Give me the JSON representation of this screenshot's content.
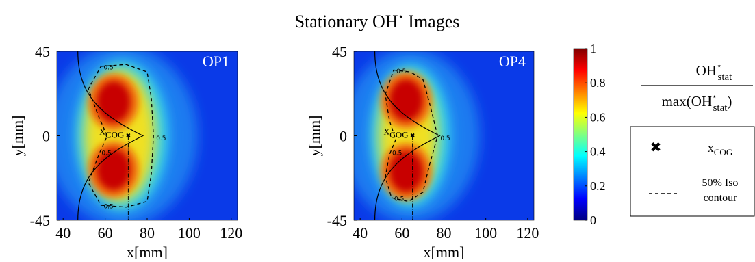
{
  "figure": {
    "title": "Stationary OH",
    "title_sup": "⋆",
    "title_rest": "Images",
    "legend": {
      "numerator": "OH",
      "numerator_sup": "⋆",
      "numerator_sub": "stat",
      "denominator": "max(OH",
      "denominator_sup": "⋆",
      "denominator_sub": "stat",
      "denominator_end": ")",
      "items": [
        {
          "symbol": "✖",
          "label": "x",
          "label_sub": "COG"
        },
        {
          "label": "50% Iso",
          "label2": "contour"
        }
      ]
    }
  },
  "chart_data": [
    {
      "type": "heatmap",
      "panel_label": "OP1",
      "xlabel": "x[mm]",
      "ylabel": "y[mm]",
      "xlim": [
        37,
        123
      ],
      "ylim": [
        -45,
        45
      ],
      "xticks": [
        40,
        60,
        80,
        100,
        120
      ],
      "yticks": [
        45,
        0,
        -45
      ],
      "cog": [
        71,
        0
      ],
      "cog_label": "x",
      "cog_label_sub": "COG",
      "contour_level": 0.5
    },
    {
      "type": "heatmap",
      "panel_label": "OP4",
      "xlabel": "x[mm]",
      "ylabel": "y[mm]",
      "xlim": [
        37,
        123
      ],
      "ylim": [
        -45,
        45
      ],
      "xticks": [
        40,
        60,
        80,
        100,
        120
      ],
      "yticks": [
        45,
        0,
        -45
      ],
      "cog": [
        65,
        0
      ],
      "cog_label": "x",
      "cog_label_sub": "COG",
      "contour_level": 0.5
    },
    {
      "type": "colorbar",
      "ylim": [
        0,
        1
      ],
      "yticks": [
        0,
        0.2,
        0.4,
        0.6,
        0.8,
        1
      ]
    }
  ]
}
